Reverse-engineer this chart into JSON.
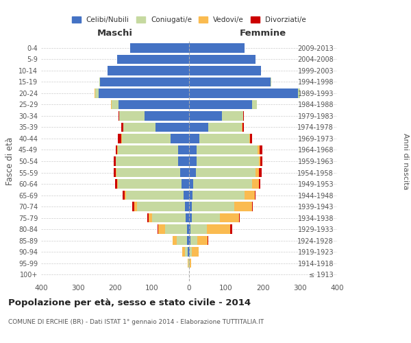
{
  "age_groups": [
    "100+",
    "95-99",
    "90-94",
    "85-89",
    "80-84",
    "75-79",
    "70-74",
    "65-69",
    "60-64",
    "55-59",
    "50-54",
    "45-49",
    "40-44",
    "35-39",
    "30-34",
    "25-29",
    "20-24",
    "15-19",
    "10-14",
    "5-9",
    "0-4"
  ],
  "birth_years": [
    "≤ 1913",
    "1914-1918",
    "1919-1923",
    "1924-1928",
    "1929-1933",
    "1934-1938",
    "1939-1943",
    "1944-1948",
    "1949-1953",
    "1954-1958",
    "1959-1963",
    "1964-1968",
    "1969-1973",
    "1974-1978",
    "1979-1983",
    "1984-1988",
    "1989-1993",
    "1994-1998",
    "1999-2003",
    "2004-2008",
    "2009-2013"
  ],
  "maschi": {
    "celibi": [
      0,
      0,
      3,
      5,
      5,
      10,
      12,
      15,
      20,
      25,
      30,
      30,
      50,
      90,
      120,
      190,
      245,
      240,
      220,
      195,
      160
    ],
    "coniugati": [
      0,
      2,
      8,
      28,
      60,
      90,
      128,
      155,
      172,
      172,
      168,
      163,
      132,
      88,
      68,
      20,
      8,
      3,
      1,
      0,
      0
    ],
    "vedovi": [
      0,
      2,
      8,
      12,
      18,
      10,
      8,
      5,
      3,
      2,
      1,
      1,
      1,
      0,
      0,
      2,
      2,
      0,
      0,
      0,
      0
    ],
    "divorziati": [
      0,
      0,
      0,
      0,
      2,
      3,
      5,
      5,
      5,
      5,
      5,
      5,
      10,
      5,
      3,
      0,
      0,
      0,
      0,
      0,
      0
    ]
  },
  "femmine": {
    "nubili": [
      0,
      0,
      2,
      4,
      4,
      8,
      8,
      10,
      12,
      18,
      20,
      20,
      28,
      52,
      88,
      170,
      295,
      220,
      195,
      180,
      150
    ],
    "coniugate": [
      0,
      2,
      6,
      18,
      45,
      75,
      115,
      140,
      158,
      162,
      168,
      165,
      135,
      90,
      58,
      14,
      5,
      2,
      0,
      0,
      0
    ],
    "vedove": [
      0,
      4,
      18,
      28,
      62,
      52,
      48,
      28,
      18,
      8,
      5,
      5,
      2,
      2,
      1,
      0,
      0,
      0,
      0,
      0,
      0
    ],
    "divorziate": [
      0,
      0,
      0,
      2,
      5,
      2,
      2,
      2,
      5,
      8,
      5,
      8,
      5,
      5,
      2,
      0,
      0,
      0,
      0,
      0,
      0
    ]
  },
  "colors": {
    "celibi": "#4472C4",
    "coniugati": "#C6D9A0",
    "vedovi": "#FABB50",
    "divorziati": "#CC0000"
  },
  "xlim": 400,
  "title": "Popolazione per età, sesso e stato civile - 2014",
  "subtitle": "COMUNE DI ERCHIE (BR) - Dati ISTAT 1° gennaio 2014 - Elaborazione TUTTITALIA.IT",
  "xlabel_left": "Maschi",
  "xlabel_right": "Femmine",
  "ylabel_left": "Fasce di età",
  "ylabel_right": "Anni di nascita",
  "legend_labels": [
    "Celibi/Nubili",
    "Coniugati/e",
    "Vedovi/e",
    "Divorziati/e"
  ],
  "background_color": "#ffffff",
  "grid_color": "#cccccc",
  "text_color": "#555555",
  "title_color": "#222222"
}
